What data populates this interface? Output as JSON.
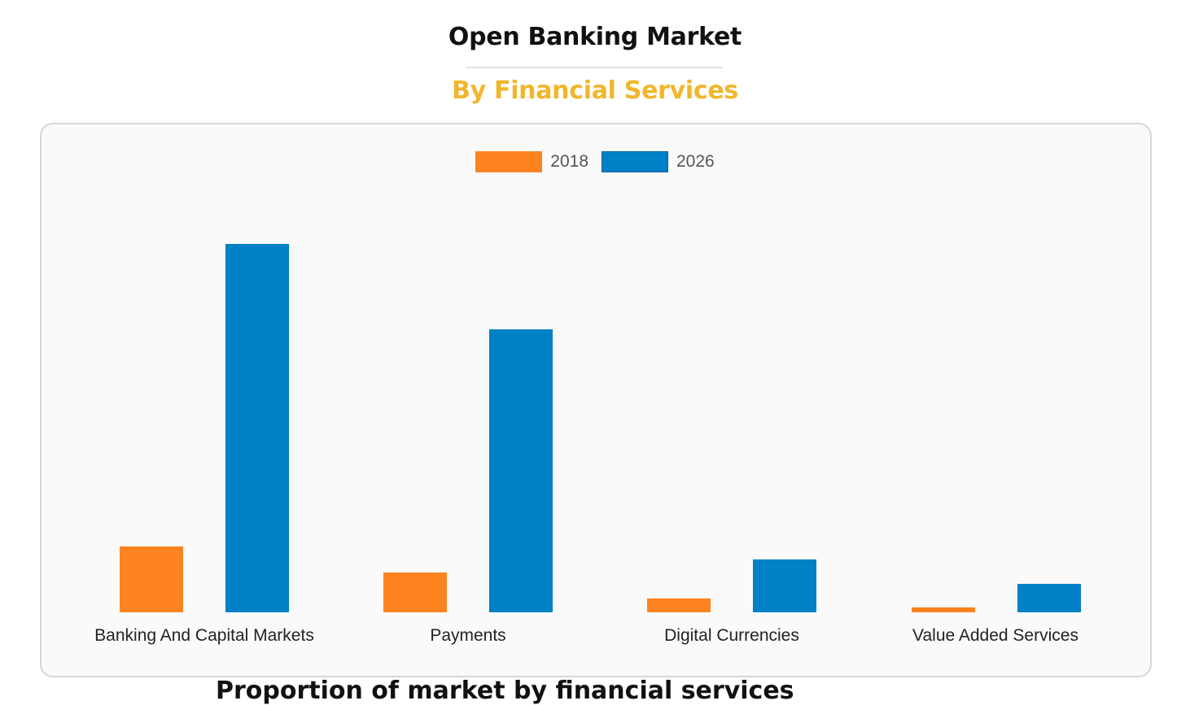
{
  "header": {
    "title": "Open Banking Market",
    "subtitle": "By Financial Services"
  },
  "footer_cut_text": "Proportion of market by financial services",
  "colors": {
    "series_2018": "#fd8320",
    "series_2026": "#0080c6",
    "subtitle": "#f1b62c"
  },
  "legend": [
    {
      "label": "2018",
      "color": "#fd8320"
    },
    {
      "label": "2026",
      "color": "#0080c6"
    }
  ],
  "chart_data": {
    "type": "bar",
    "title": "Open Banking Market",
    "subtitle": "By Financial Services",
    "categories": [
      "Banking And Capital Markets",
      "Payments",
      "Digital Currencies",
      "Value Added Services"
    ],
    "series": [
      {
        "name": "2018",
        "values": [
          81,
          49,
          17,
          6
        ]
      },
      {
        "name": "2026",
        "values": [
          453,
          348,
          65,
          35
        ]
      }
    ],
    "xlabel": "",
    "ylabel": "",
    "y_axis_visible": false,
    "grid": false,
    "legend_position": "top",
    "units": "relative (no axis shown)"
  }
}
